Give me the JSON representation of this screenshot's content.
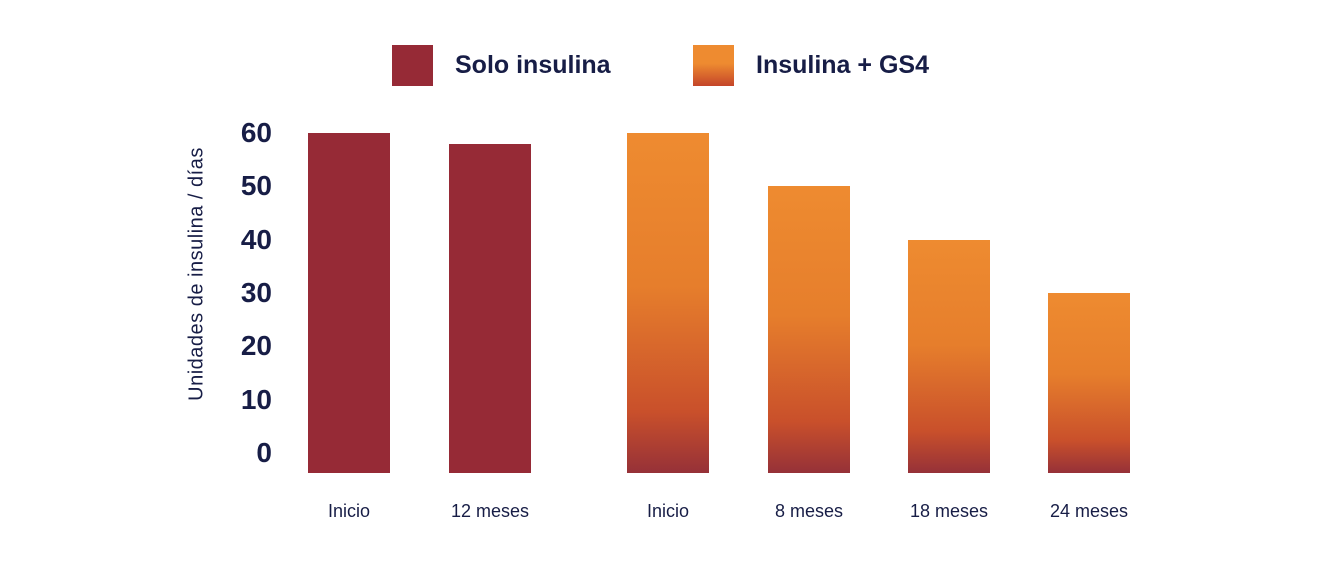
{
  "chart_data": {
    "type": "bar",
    "title": "",
    "ylabel": "Unidades de insulina / días",
    "xlabel": "",
    "ylim": [
      0,
      60
    ],
    "yticks": [
      0,
      10,
      20,
      30,
      40,
      50,
      60
    ],
    "grid": false,
    "legend_position": "top",
    "series": [
      {
        "name": "Solo insulina",
        "style": "solid",
        "color": "#962a36",
        "categories": [
          "Inicio",
          "12 meses"
        ],
        "values": [
          60,
          58
        ]
      },
      {
        "name": "Insulina + GS4",
        "style": "gradient",
        "gradient": {
          "top": "#ee8b30",
          "upper_mid": "#e67e2c",
          "lower_mid": "#c9502b",
          "bottom": "#963138"
        },
        "categories": [
          "Inicio",
          "8 meses",
          "18 meses",
          "24 meses"
        ],
        "values": [
          60,
          50,
          40,
          30
        ]
      }
    ]
  },
  "legend": {
    "items": [
      {
        "label": "Solo insulina",
        "swatch_solid": "#962a36"
      },
      {
        "label": "Insulina + GS4",
        "swatch_gradient_top": "#ee8b30",
        "swatch_gradient_bottom": "#c4452a"
      }
    ]
  },
  "colors": {
    "text": "#171d46",
    "background": "#ffffff"
  }
}
